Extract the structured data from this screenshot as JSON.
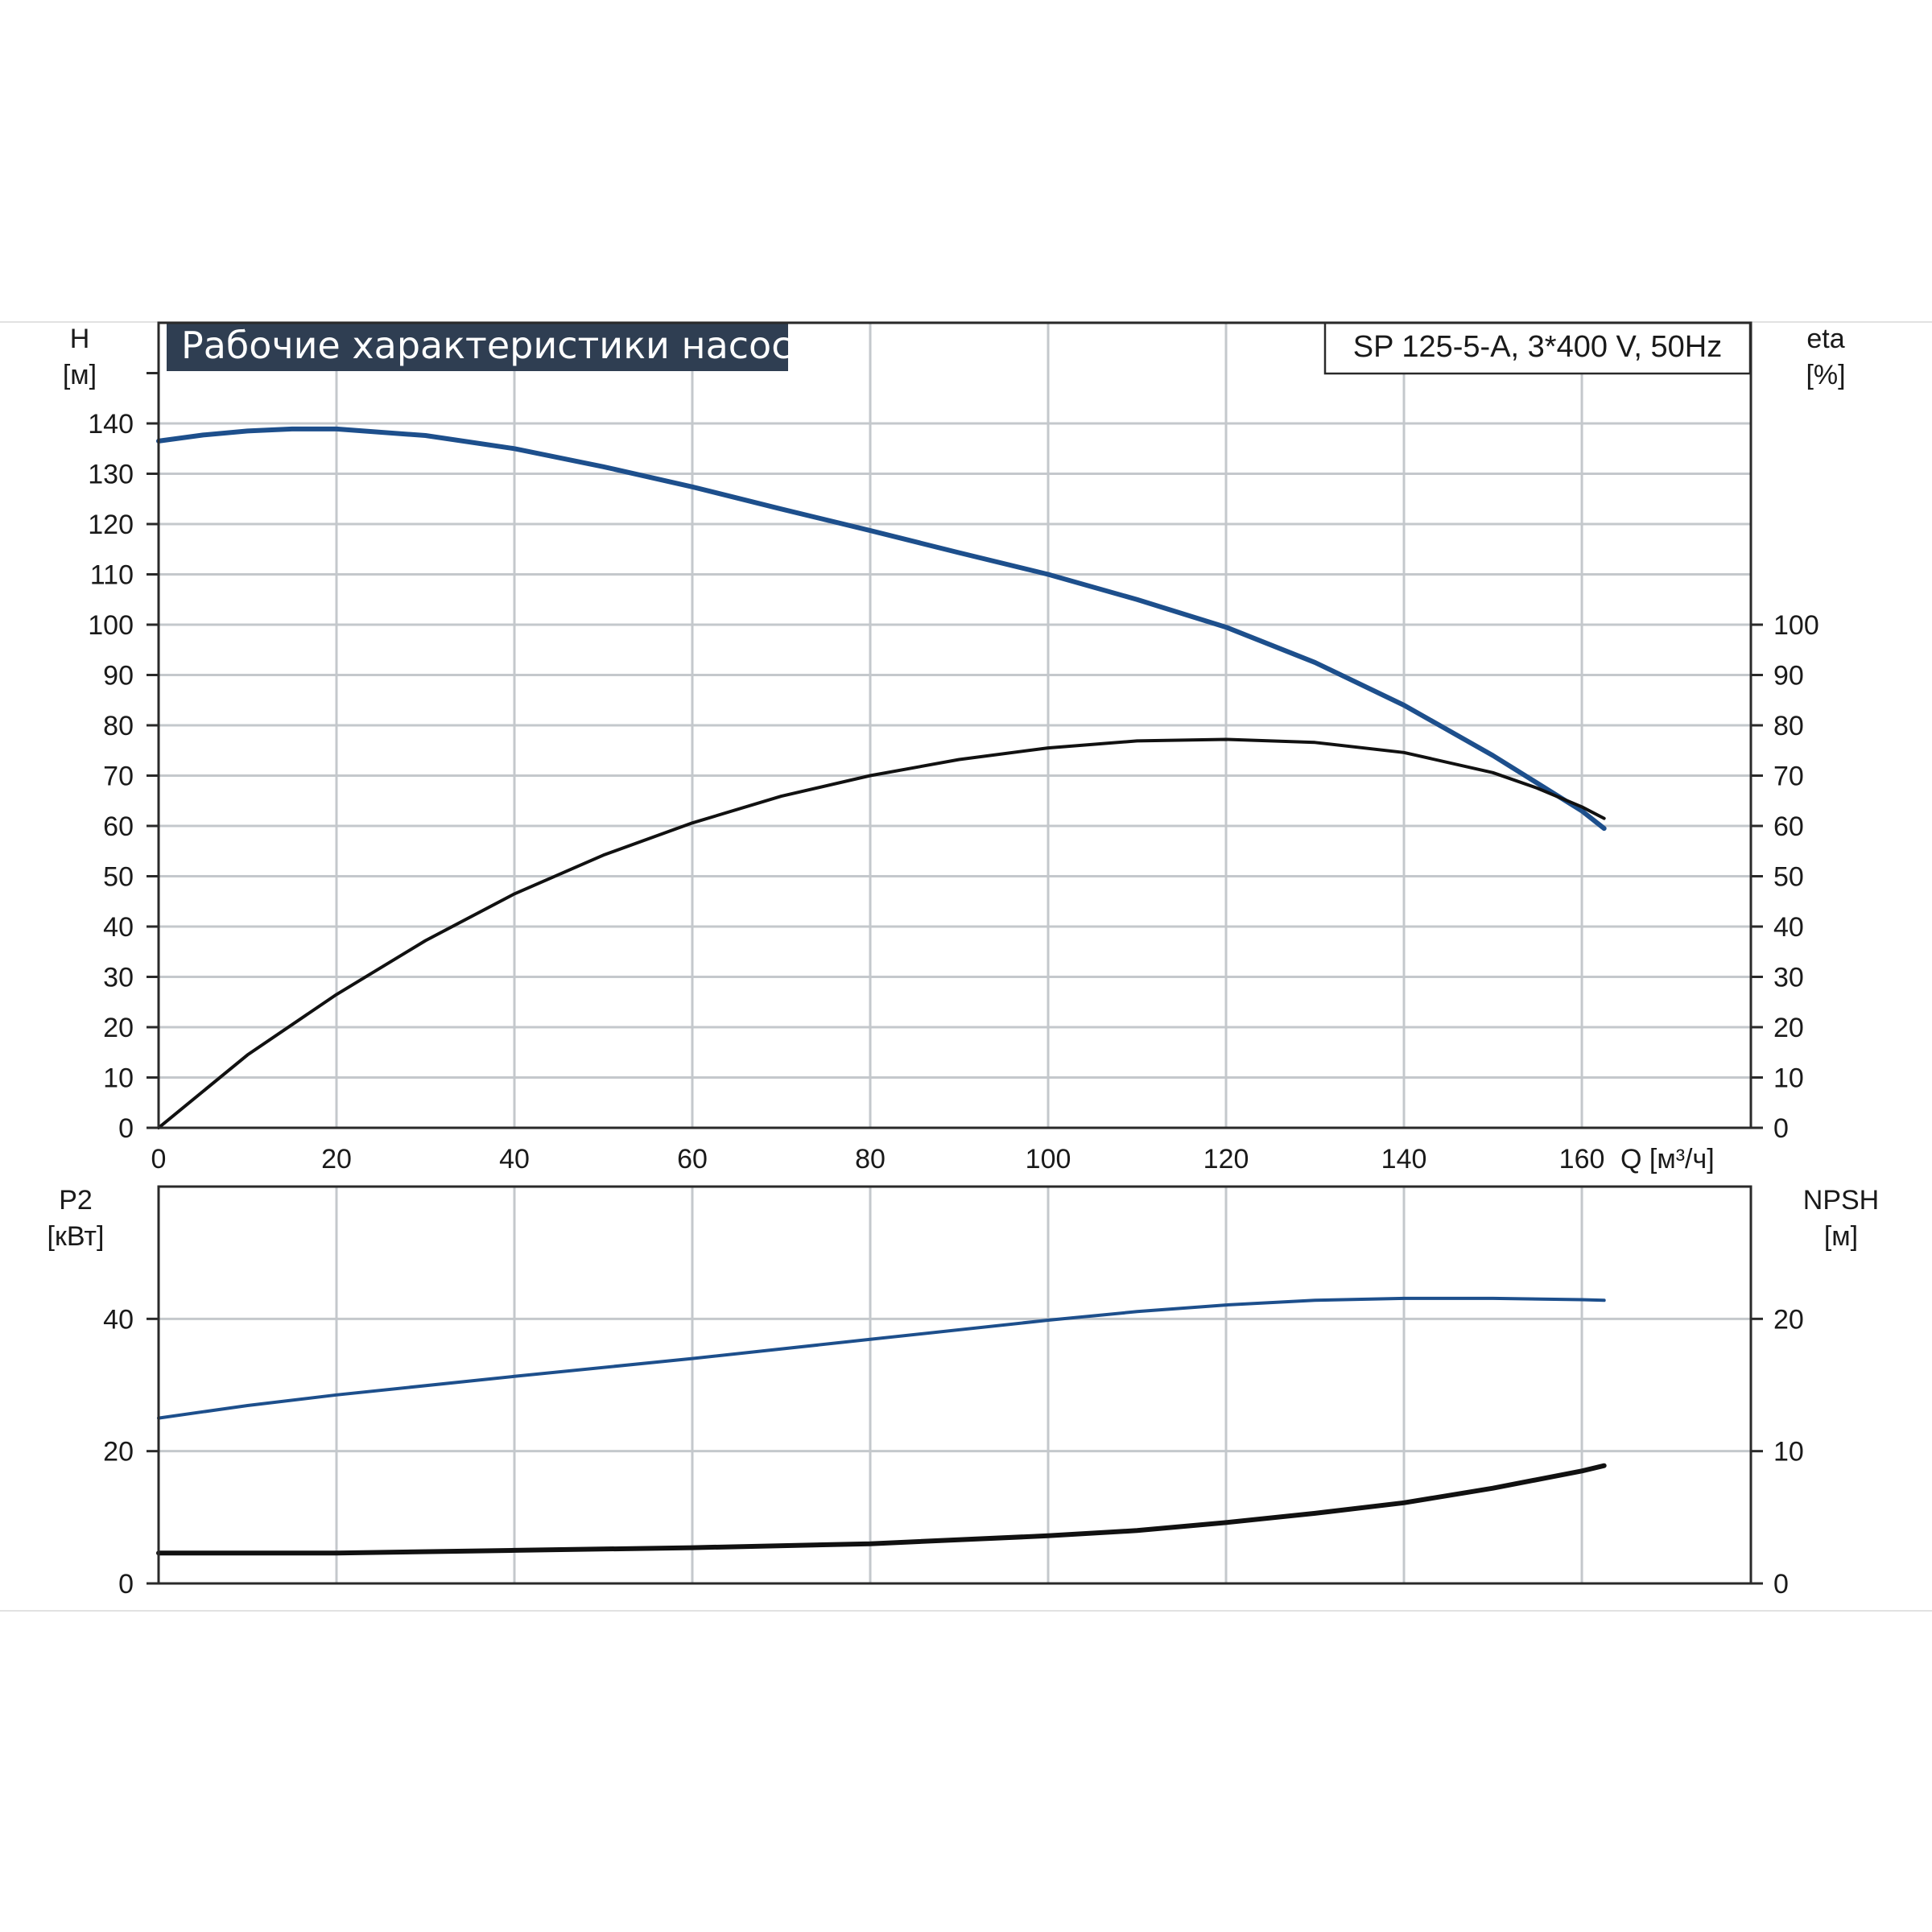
{
  "chart_data": [
    {
      "type": "line",
      "panel": "top",
      "title": "Рабочие характеристики насоса",
      "model_label": "SP 125-5-A, 3*400 V, 50Hz",
      "xlabel": "Q [м³/ч]",
      "xlim": [
        0,
        179
      ],
      "x_ticks": [
        0,
        20,
        40,
        60,
        80,
        100,
        120,
        140,
        160
      ],
      "y_left": {
        "name": "H",
        "unit": "[м]",
        "lim": [
          0,
          160
        ],
        "ticks": [
          0,
          10,
          20,
          30,
          40,
          50,
          60,
          70,
          80,
          90,
          100,
          110,
          120,
          130,
          140
        ]
      },
      "y_right": {
        "name": "eta",
        "unit": "[%]",
        "lim": [
          0,
          160
        ],
        "ticks": [
          0,
          10,
          20,
          30,
          40,
          50,
          60,
          70,
          80,
          90,
          100
        ]
      },
      "grid": true,
      "series": [
        {
          "axis": "left",
          "color": "#1d4f8c",
          "x": [
            0,
            5,
            10,
            15,
            20,
            30,
            40,
            50,
            60,
            70,
            80,
            90,
            100,
            110,
            120,
            130,
            140,
            150,
            160,
            162.5
          ],
          "y": [
            136.5,
            137.7,
            138.5,
            138.9,
            138.9,
            137.6,
            135.0,
            131.4,
            127.4,
            123.0,
            118.7,
            114.3,
            110.0,
            105.0,
            99.5,
            92.5,
            84.0,
            74.0,
            63.0,
            59.5
          ]
        },
        {
          "axis": "right",
          "color": "#111111",
          "x": [
            0,
            10,
            20,
            30,
            40,
            50,
            60,
            70,
            80,
            90,
            100,
            110,
            120,
            130,
            140,
            150,
            155,
            160,
            162.5
          ],
          "y": [
            0,
            14.5,
            26.5,
            37.2,
            46.5,
            54.2,
            60.6,
            65.9,
            70.0,
            73.2,
            75.5,
            76.9,
            77.2,
            76.6,
            74.6,
            70.6,
            67.5,
            63.8,
            61.5
          ]
        }
      ]
    },
    {
      "type": "line",
      "panel": "bottom",
      "xlim": [
        0,
        179
      ],
      "x_ticks": [
        0,
        20,
        40,
        60,
        80,
        100,
        120,
        140,
        160
      ],
      "y_left": {
        "name": "P2",
        "unit": "[кВт]",
        "lim": [
          0,
          60
        ],
        "ticks": [
          0,
          20,
          40
        ]
      },
      "y_right": {
        "name": "NPSH",
        "unit": "[м]",
        "lim": [
          0,
          30
        ],
        "ticks": [
          0,
          10,
          20
        ]
      },
      "grid": true,
      "series": [
        {
          "axis": "left",
          "color": "#1d4f8c",
          "x": [
            0,
            10,
            20,
            40,
            60,
            80,
            100,
            110,
            120,
            130,
            140,
            150,
            160,
            162.5
          ],
          "y": [
            25.0,
            26.9,
            28.5,
            31.3,
            34.0,
            36.9,
            39.8,
            41.1,
            42.1,
            42.8,
            43.1,
            43.1,
            42.9,
            42.8
          ]
        },
        {
          "axis": "right",
          "color": "#111111",
          "x": [
            0,
            20,
            40,
            60,
            80,
            100,
            110,
            120,
            130,
            140,
            150,
            160,
            162.5
          ],
          "y": [
            2.3,
            2.3,
            2.5,
            2.7,
            3.0,
            3.6,
            4.0,
            4.6,
            5.3,
            6.1,
            7.2,
            8.5,
            8.9
          ]
        }
      ]
    }
  ]
}
